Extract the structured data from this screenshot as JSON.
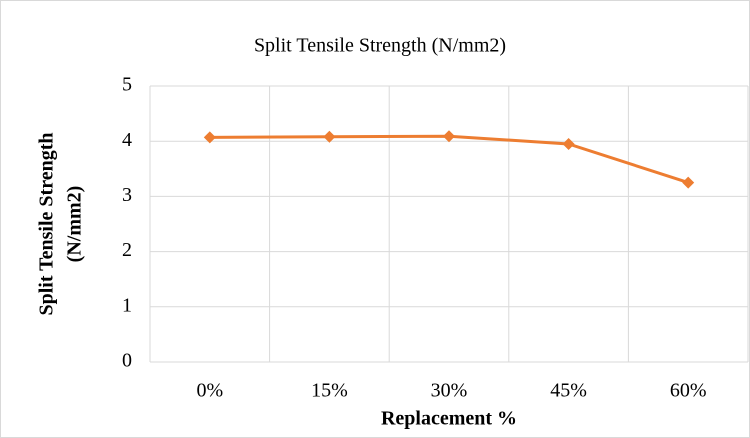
{
  "chart_data": {
    "type": "line",
    "title": "Split Tensile Strength (N/mm2)",
    "x_label": "Replacement %",
    "y_label": [
      "Split Tensile Strength",
      "(N/mm2)"
    ],
    "categories": [
      "0%",
      "15%",
      "30%",
      "45%",
      "60%"
    ],
    "series": [
      {
        "name": "Split Tensile Strength",
        "color": "#ed7d31",
        "values": [
          4.07,
          4.08,
          4.09,
          3.95,
          3.25
        ]
      }
    ],
    "ylim": [
      0,
      5
    ],
    "yticks": [
      0,
      1,
      2,
      3,
      4,
      5
    ],
    "grid": true
  }
}
